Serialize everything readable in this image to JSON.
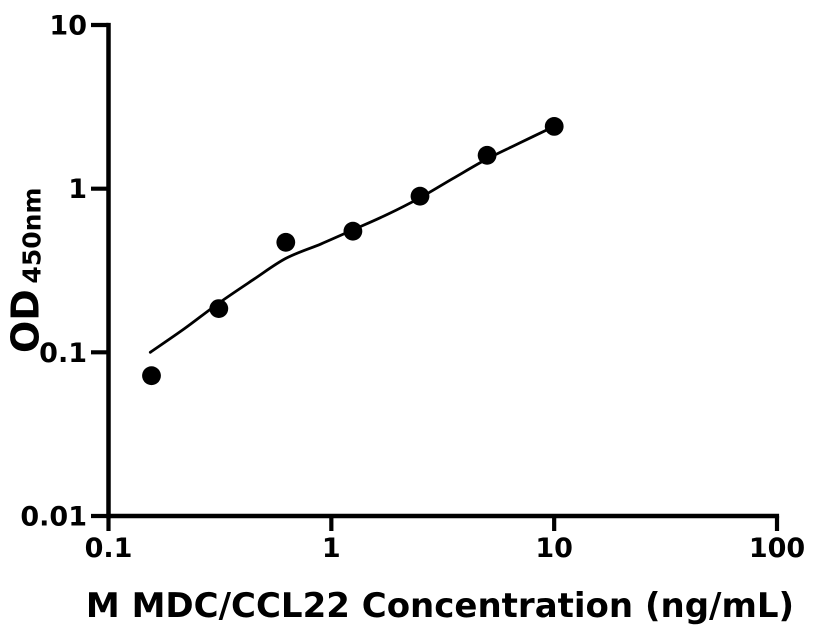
{
  "figure": {
    "background_color": "#ffffff"
  },
  "chart_data": {
    "type": "scatter",
    "title": "",
    "xlabel": "M MDC/CCL22 Concentration (ng/mL)",
    "ylabel_main": "OD",
    "ylabel_sub": "450nm",
    "x_scale": "log",
    "y_scale": "log",
    "xlim": [
      0.1,
      100
    ],
    "ylim": [
      0.01,
      10
    ],
    "grid": false,
    "legend": null,
    "x_ticks": [
      {
        "value": 0.1,
        "label": "0.1"
      },
      {
        "value": 1,
        "label": "1"
      },
      {
        "value": 10,
        "label": "10"
      },
      {
        "value": 100,
        "label": "100"
      }
    ],
    "y_ticks": [
      {
        "value": 0.01,
        "label": "0.01"
      },
      {
        "value": 0.1,
        "label": "0.1"
      },
      {
        "value": 1,
        "label": "1"
      },
      {
        "value": 10,
        "label": "10"
      }
    ],
    "series": [
      {
        "name": "standard-curve-points",
        "points": [
          {
            "x": 0.156,
            "y": 0.072
          },
          {
            "x": 0.3125,
            "y": 0.185
          },
          {
            "x": 0.625,
            "y": 0.47
          },
          {
            "x": 1.25,
            "y": 0.55
          },
          {
            "x": 2.5,
            "y": 0.9
          },
          {
            "x": 5,
            "y": 1.6
          },
          {
            "x": 10,
            "y": 2.4
          }
        ]
      }
    ],
    "fit_curve": [
      {
        "x": 0.154,
        "y": 0.1
      },
      {
        "x": 0.22,
        "y": 0.14
      },
      {
        "x": 0.3125,
        "y": 0.2
      },
      {
        "x": 0.45,
        "y": 0.28
      },
      {
        "x": 0.625,
        "y": 0.375
      },
      {
        "x": 0.9,
        "y": 0.46
      },
      {
        "x": 1.25,
        "y": 0.56
      },
      {
        "x": 1.8,
        "y": 0.7
      },
      {
        "x": 2.5,
        "y": 0.88
      },
      {
        "x": 3.5,
        "y": 1.15
      },
      {
        "x": 5,
        "y": 1.52
      },
      {
        "x": 7,
        "y": 1.9
      },
      {
        "x": 10,
        "y": 2.4
      }
    ],
    "colors": {
      "axis": "#000000",
      "text": "#000000",
      "marker": "#000000",
      "curve": "#000000",
      "background": "#ffffff"
    }
  }
}
